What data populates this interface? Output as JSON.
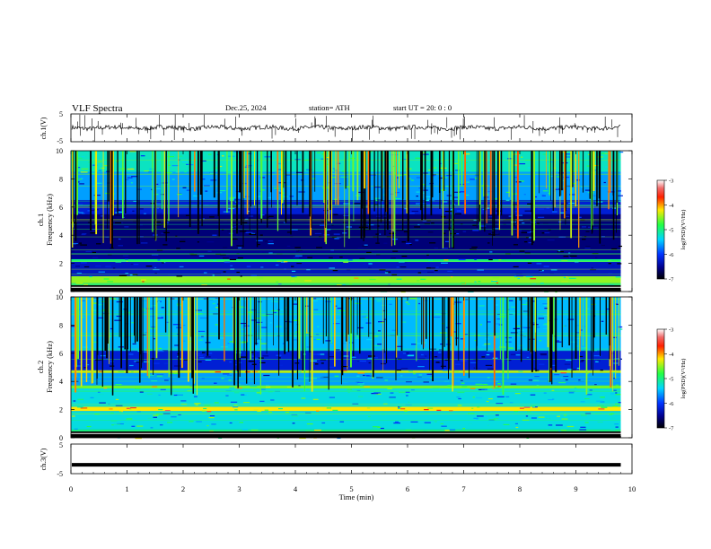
{
  "header": {
    "title": "VLF  Spectra",
    "date": "Dec.25, 2024",
    "station": "station= ATH",
    "start": "start  UT  =   20: 0  : 0"
  },
  "chart_data": [
    {
      "type": "line",
      "panel": "ch1-waveform",
      "ylabel": "ch.1(V)",
      "ylim": [
        -5,
        5
      ],
      "y_ticks": [
        "5",
        "-5"
      ],
      "baseline": 0,
      "style": "noisy waveform with frequent spikes",
      "color": "#000000"
    },
    {
      "type": "heatmap",
      "panel": "ch1-spectrogram",
      "ylabel": "ch.1\nFrequency  (kHz)",
      "ylim": [
        0,
        10
      ],
      "y_ticks": [
        "0",
        "2",
        "4",
        "6",
        "8",
        "10"
      ],
      "bands": [
        {
          "from": 0.0,
          "to": 0.6,
          "level": -5.0
        },
        {
          "from": 0.6,
          "to": 1.1,
          "level": -4.5
        },
        {
          "from": 1.1,
          "to": 2.1,
          "level": -6.3
        },
        {
          "from": 2.1,
          "to": 2.3,
          "level": -5.0
        },
        {
          "from": 2.3,
          "to": 3.0,
          "level": -6.5
        },
        {
          "from": 3.0,
          "to": 5.5,
          "level": -6.6
        },
        {
          "from": 5.5,
          "to": 6.5,
          "level": -6.2
        },
        {
          "from": 6.5,
          "to": 8.5,
          "level": -5.6
        },
        {
          "from": 8.5,
          "to": 10.0,
          "level": -5.2
        }
      ],
      "colorbar": {
        "label": "log(PSD)(V²/Hz)",
        "ticks": [
          "-3",
          "-4",
          "-5",
          "-6",
          "-7"
        ],
        "range": [
          -7,
          -3
        ]
      }
    },
    {
      "type": "heatmap",
      "panel": "ch2-spectrogram",
      "ylabel": "ch.2\nFrequency  (kHz)",
      "ylim": [
        0,
        10
      ],
      "y_ticks": [
        "0",
        "2",
        "4",
        "6",
        "8",
        "10"
      ],
      "bands": [
        {
          "from": 0.0,
          "to": 0.6,
          "level": -5.0
        },
        {
          "from": 0.6,
          "to": 1.9,
          "level": -5.3
        },
        {
          "from": 1.9,
          "to": 2.2,
          "level": -4.2
        },
        {
          "from": 2.2,
          "to": 3.5,
          "level": -5.3
        },
        {
          "from": 3.5,
          "to": 3.7,
          "level": -4.6
        },
        {
          "from": 3.7,
          "to": 4.6,
          "level": -5.6
        },
        {
          "from": 4.6,
          "to": 4.8,
          "level": -4.4
        },
        {
          "from": 4.8,
          "to": 6.2,
          "level": -6.2
        },
        {
          "from": 6.2,
          "to": 10.0,
          "level": -5.5
        }
      ],
      "colorbar": {
        "label": "log(PSD)(V²/Hz)",
        "ticks": [
          "-3",
          "-4",
          "-5",
          "-6",
          "-7"
        ],
        "range": [
          -7,
          -3
        ]
      }
    },
    {
      "type": "line",
      "panel": "ch3-waveform",
      "ylabel": "ch.3(V)",
      "ylim": [
        -5,
        5
      ],
      "y_ticks": [
        "5",
        "-5"
      ],
      "baseline": -2,
      "style": "thick flat trace",
      "color": "#000000"
    }
  ],
  "x_axis": {
    "label": "Time  (min)",
    "ticks": [
      "0",
      "1",
      "2",
      "3",
      "4",
      "5",
      "6",
      "7",
      "8",
      "9",
      "10"
    ],
    "range": [
      0,
      10
    ],
    "data_end": 9.8
  }
}
